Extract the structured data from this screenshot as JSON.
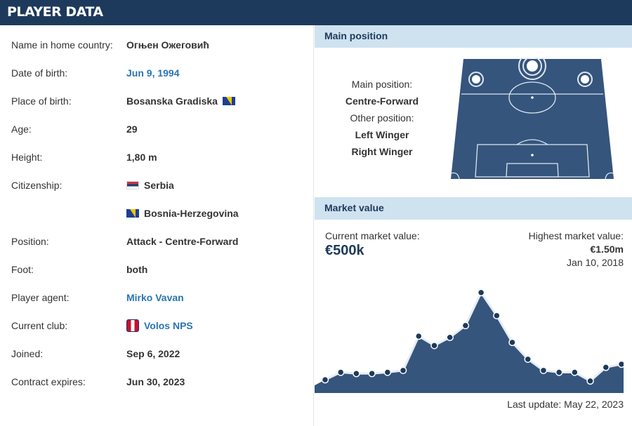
{
  "header": {
    "title": "PLAYER DATA"
  },
  "player": {
    "rows": [
      {
        "label": "Name in home country:",
        "value": "Огњен Ожеговић",
        "link": false
      },
      {
        "label": "Date of birth:",
        "value": "Jun 9, 1994",
        "link": true
      },
      {
        "label": "Place of birth:",
        "value": "Bosanska Gradiska",
        "link": false,
        "flag": "ba"
      },
      {
        "label": "Age:",
        "value": "29",
        "link": false
      },
      {
        "label": "Height:",
        "value": "1,80 m",
        "link": false
      },
      {
        "label": "Citizenship:",
        "value": "Serbia",
        "link": false,
        "flag": "rs"
      },
      {
        "label": "",
        "value": "Bosnia-Herzegovina",
        "link": false,
        "flag": "ba"
      },
      {
        "label": "Position:",
        "value": "Attack - Centre-Forward",
        "link": false
      },
      {
        "label": "Foot:",
        "value": "both",
        "link": false
      },
      {
        "label": "Player agent:",
        "value": "Mirko Vavan",
        "link": true
      },
      {
        "label": "Current club:",
        "value": "Volos NPS",
        "link": true,
        "badge": "club-crest"
      },
      {
        "label": "Joined:",
        "value": "Sep 6, 2022",
        "link": false
      },
      {
        "label": "Contract expires:",
        "value": "Jun 30, 2023",
        "link": false
      }
    ]
  },
  "position_panel": {
    "title": "Main position",
    "main_label": "Main position:",
    "main_value": "Centre-Forward",
    "other_label": "Other position:",
    "other_values": [
      "Left Winger",
      "Right Winger"
    ]
  },
  "market_value": {
    "title": "Market value",
    "current_label": "Current market value:",
    "current_value": "€500k",
    "highest_label": "Highest market value:",
    "highest_value": "€1.50m",
    "highest_date": "Jan 10, 2018",
    "last_update": "Last update: May 22, 2023",
    "colors": {
      "area": "#35557d",
      "line": "#e7edf3",
      "point": "#1d3a5c"
    }
  },
  "chart_data": {
    "type": "area",
    "title": "",
    "xlabel": "",
    "ylabel": "",
    "ylim": [
      0,
      1.6
    ],
    "series": [
      {
        "values": [
          0.1,
          0.22,
          0.2,
          0.2,
          0.22,
          0.25,
          0.8,
          0.65,
          0.78,
          0.97,
          1.5,
          1.13,
          0.7,
          0.43,
          0.25,
          0.22,
          0.22,
          0.08,
          0.3,
          0.35
        ]
      }
    ]
  }
}
